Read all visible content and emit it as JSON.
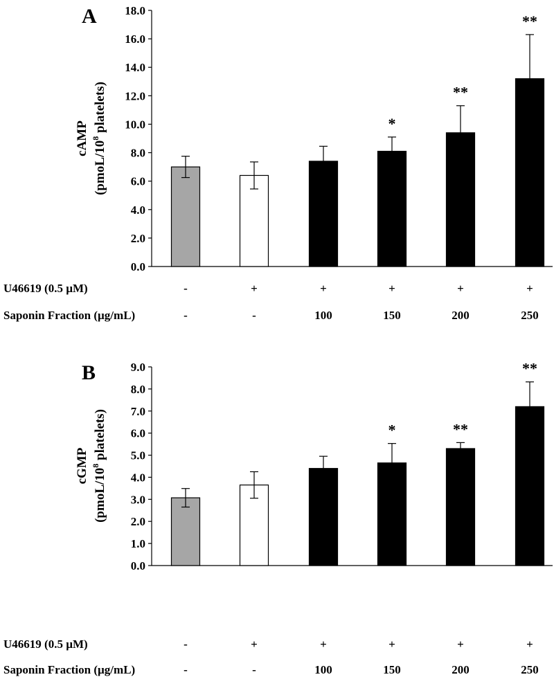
{
  "chart_data": [
    {
      "type": "bar",
      "panel": "A",
      "ylabel_line1": "cAMP",
      "ylabel_line2_pre": "(pmoL/10",
      "ylabel_line2_sup": "8",
      "ylabel_line2_post": " platelets)",
      "ylim": [
        0,
        18
      ],
      "yticks": [
        "0.0",
        "2.0",
        "4.0",
        "6.0",
        "8.0",
        "10.0",
        "12.0",
        "14.0",
        "16.0",
        "18.0"
      ],
      "values": [
        7.0,
        6.4,
        7.4,
        8.1,
        9.4,
        13.2
      ],
      "errors": [
        0.75,
        0.95,
        1.05,
        1.0,
        1.9,
        3.1
      ],
      "significance": [
        "",
        "",
        "",
        "*",
        "**",
        "**"
      ],
      "bar_colors": [
        "#a6a6a6",
        "#ffffff",
        "#000000",
        "#000000",
        "#000000",
        "#000000"
      ],
      "conditions": [
        {
          "label": "U46619  (0.5 µM)",
          "values": [
            "-",
            "+",
            "+",
            "+",
            "+",
            "+"
          ]
        },
        {
          "label": "Saponin Fraction (µg/mL)",
          "values": [
            "-",
            "-",
            "100",
            "150",
            "200",
            "250"
          ]
        }
      ]
    },
    {
      "type": "bar",
      "panel": "B",
      "ylabel_line1": "cGMP",
      "ylabel_line2_pre": "(pmoL/10",
      "ylabel_line2_sup": "8",
      "ylabel_line2_post": " platelets)",
      "ylim": [
        0,
        9
      ],
      "yticks": [
        "0.0",
        "1.0",
        "2.0",
        "3.0",
        "4.0",
        "5.0",
        "6.0",
        "7.0",
        "8.0",
        "9.0"
      ],
      "values": [
        3.07,
        3.65,
        4.4,
        4.65,
        5.3,
        7.2
      ],
      "errors": [
        0.42,
        0.6,
        0.55,
        0.88,
        0.27,
        1.12
      ],
      "significance": [
        "",
        "",
        "",
        "*",
        "**",
        "**"
      ],
      "bar_colors": [
        "#a6a6a6",
        "#ffffff",
        "#000000",
        "#000000",
        "#000000",
        "#000000"
      ],
      "conditions": [
        {
          "label": "U46619  (0.5 µM)",
          "values": [
            "-",
            "+",
            "+",
            "+",
            "+",
            "+"
          ]
        },
        {
          "label": "Saponin Fraction (µg/mL)",
          "values": [
            "-",
            "-",
            "100",
            "150",
            "200",
            "250"
          ]
        }
      ]
    }
  ]
}
